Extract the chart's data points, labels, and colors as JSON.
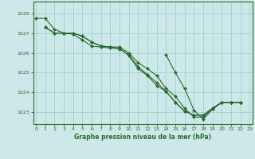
{
  "title": "Graphe pression niveau de la mer (hPa)",
  "bg_color": "#cce8e8",
  "grid_color": "#99cccc",
  "line_color": "#2d6a2d",
  "marker_color": "#2d6a2d",
  "xlim": [
    -0.3,
    23.3
  ],
  "ylim": [
    1022.4,
    1028.6
  ],
  "yticks": [
    1023,
    1024,
    1025,
    1026,
    1027,
    1028
  ],
  "xticks": [
    0,
    1,
    2,
    3,
    4,
    5,
    6,
    7,
    8,
    9,
    10,
    11,
    12,
    13,
    14,
    15,
    16,
    17,
    18,
    19,
    20,
    21,
    22,
    23
  ],
  "series": [
    [
      1027.75,
      1027.75,
      1027.2,
      1027.0,
      1027.0,
      1026.85,
      1026.55,
      1026.35,
      1026.3,
      1026.3,
      1026.0,
      1025.5,
      1025.2,
      1024.85,
      1024.2,
      1023.8,
      1023.2,
      1022.75,
      1022.75,
      1023.15,
      1023.5,
      1023.5,
      1023.5,
      null
    ],
    [
      null,
      1027.3,
      1027.0,
      1027.0,
      1026.95,
      1026.65,
      1026.35,
      1026.3,
      1026.25,
      1026.2,
      1025.9,
      1025.3,
      1024.9,
      1024.5,
      1024.05,
      1023.5,
      1023.05,
      1022.85,
      1022.85,
      1023.2,
      1023.5,
      1023.5,
      1023.5,
      null
    ],
    [
      null,
      1027.3,
      1027.0,
      1027.0,
      1027.0,
      1026.85,
      1026.55,
      1026.35,
      1026.3,
      1026.25,
      1025.85,
      1025.2,
      1024.85,
      1024.35,
      1024.05,
      1023.5,
      1023.05,
      1022.85,
      1022.85,
      1023.2,
      1023.5,
      1023.5,
      1023.5,
      null
    ],
    [
      null,
      null,
      null,
      null,
      null,
      null,
      null,
      null,
      null,
      null,
      null,
      null,
      null,
      null,
      1025.9,
      1025.0,
      1024.2,
      1023.1,
      1022.65,
      1023.15,
      1023.5,
      1023.5,
      1023.5,
      null
    ]
  ]
}
